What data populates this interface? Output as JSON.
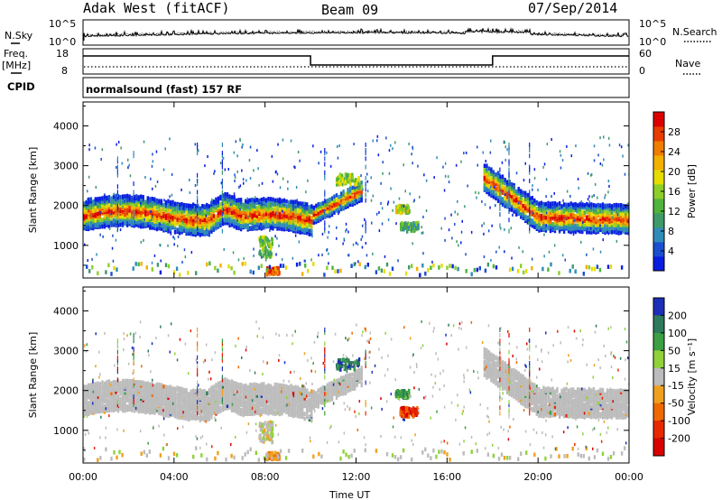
{
  "header": {
    "site": "Adak West (fitACF)",
    "beam": "Beam 09",
    "date": "07/Sep/2014"
  },
  "top_panel_labels": {
    "nsky": "N.Sky",
    "nsky_tick_hi": "10^5",
    "nsky_tick_lo": "10^0",
    "nsearch": "N.Search",
    "nsearch_tick_hi": "10^5",
    "nsearch_tick_lo": "10^0",
    "freq": "Freq.",
    "freq_unit": "[MHz]",
    "freq_tick_hi": "18",
    "freq_tick_lo": "8",
    "nave": "Nave",
    "nave_tick_hi": "60",
    "nave_tick_lo": "0",
    "cpid": "CPID",
    "program": "normalsound (fast) 157 RF"
  },
  "chart_data": [
    {
      "type": "heatmap",
      "name": "power",
      "ylabel": "Slant Range [km]",
      "ytick_labels": [
        "1000",
        "2000",
        "3000",
        "4000"
      ],
      "yticks": [
        1000,
        2000,
        3000,
        4000
      ],
      "ylim": [
        180,
        4600
      ],
      "xlim": [
        0,
        24
      ],
      "colorbar": {
        "label": "Power [dB]",
        "tick_labels": [
          "4",
          "8",
          "12",
          "16",
          "20",
          "24",
          "28"
        ],
        "ticks": [
          4,
          8,
          12,
          16,
          20,
          24,
          28
        ],
        "range": [
          0,
          32
        ],
        "colors": [
          "#0a1ee0",
          "#1a4fd0",
          "#2f8cb8",
          "#3f9a6a",
          "#4fb43c",
          "#8ccf2a",
          "#e6dc00",
          "#f2b000",
          "#f07c00",
          "#e83c00",
          "#dc0000"
        ]
      }
    },
    {
      "type": "heatmap",
      "name": "velocity",
      "ylabel": "Slant Range [km]",
      "ytick_labels": [
        "1000",
        "2000",
        "3000",
        "4000"
      ],
      "yticks": [
        1000,
        2000,
        3000,
        4000
      ],
      "ylim": [
        180,
        4600
      ],
      "xlim": [
        0,
        24
      ],
      "colorbar": {
        "label": "Velocity [m s⁻¹]",
        "tick_labels": [
          "200",
          "100",
          "50",
          "15",
          "-15",
          "-50",
          "-100",
          "-200"
        ],
        "ticks": [
          200,
          100,
          50,
          15,
          -15,
          -50,
          -100,
          -200
        ],
        "colors": [
          "#1c2fb8",
          "#2d7a5c",
          "#3aa043",
          "#8fd23a",
          "#bcbcbc",
          "#f0a020",
          "#f06800",
          "#e82800",
          "#d80000"
        ]
      }
    }
  ],
  "time_axis": {
    "xlabel": "Time UT",
    "tick_labels": [
      "00:00",
      "04:00",
      "08:00",
      "12:00",
      "16:00",
      "20:00",
      "00:00"
    ],
    "ticks": [
      0,
      4,
      8,
      12,
      16,
      20,
      24
    ]
  },
  "frequency_trace": {
    "x": [
      0,
      10,
      10,
      18,
      18,
      24
    ],
    "y": [
      14.7,
      14.7,
      10.6,
      10.6,
      14.7,
      14.7
    ]
  },
  "colors": {
    "background": "#ffffff",
    "axes": "#000000",
    "ground_scatter": "#bcbcbc"
  }
}
